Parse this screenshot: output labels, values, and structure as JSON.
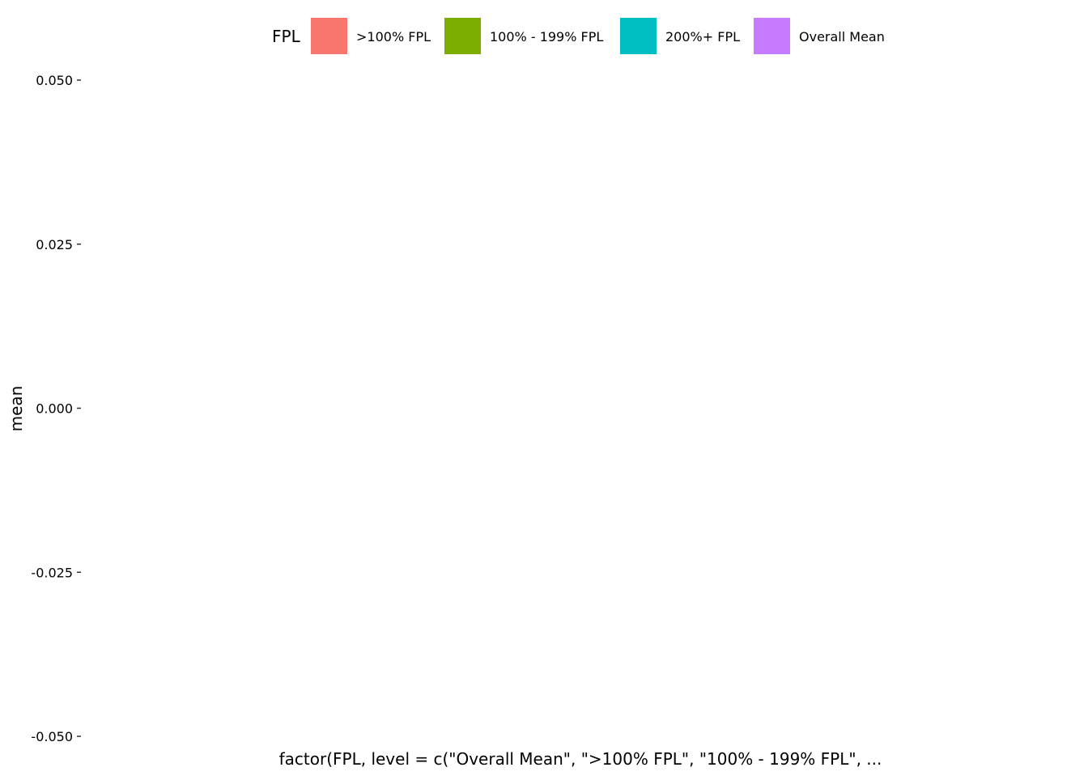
{
  "chart_data": {
    "type": "bar",
    "title": "",
    "xlabel": "factor(FPL, level = c(\"Overall Mean\", \">100% FPL\", \"100% - 199% FPL\", ...",
    "ylabel": "mean",
    "ylim": [
      -0.05,
      0.05
    ],
    "y_ticks": [
      {
        "value": 0.05,
        "label": "0.050"
      },
      {
        "value": 0.025,
        "label": "0.025"
      },
      {
        "value": 0.0,
        "label": "0.000"
      },
      {
        "value": -0.025,
        "label": "-0.025"
      },
      {
        "value": -0.05,
        "label": "-0.050"
      }
    ],
    "categories": [],
    "series": [],
    "grid": false,
    "legend": {
      "title": "FPL",
      "placement": "top",
      "entries": [
        {
          "label": ">100% FPL",
          "color": "#F8766D"
        },
        {
          "label": "100% - 199% FPL",
          "color": "#7CAE00"
        },
        {
          "label": "200%+ FPL",
          "color": "#00BFC4"
        },
        {
          "label": "Overall Mean",
          "color": "#C77CFF"
        }
      ]
    }
  }
}
